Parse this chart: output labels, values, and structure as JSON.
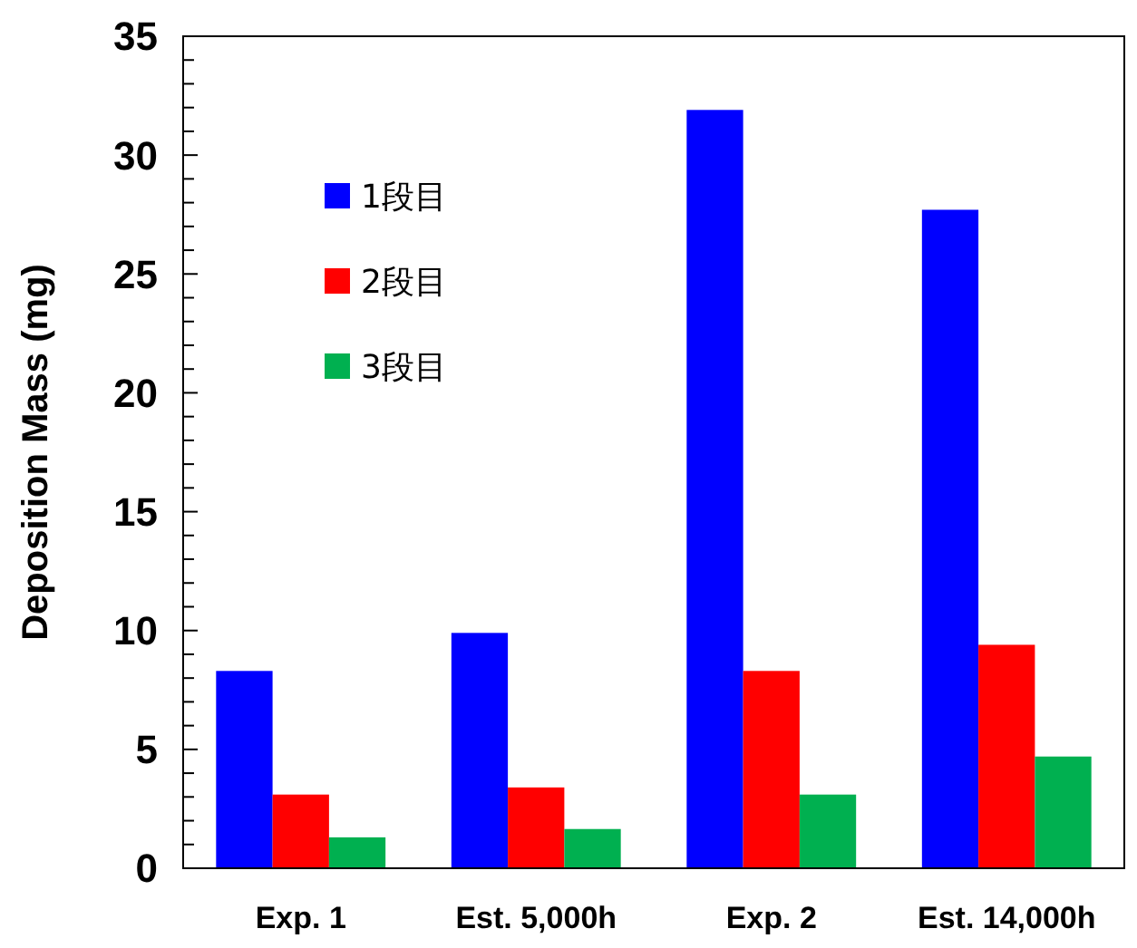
{
  "chart_data": {
    "type": "bar",
    "ylabel": "Deposition Mass (mg)",
    "categories": [
      "Exp. 1",
      "Est. 5,000h",
      "Exp. 2",
      "Est. 14,000h"
    ],
    "series": [
      {
        "name": "1段目",
        "color": "#0000ff",
        "values": [
          8.3,
          9.9,
          31.9,
          27.7
        ]
      },
      {
        "name": "2段目",
        "color": "#ff0000",
        "values": [
          3.1,
          3.4,
          8.3,
          9.4
        ]
      },
      {
        "name": "3段目",
        "color": "#00b050",
        "values": [
          1.3,
          1.65,
          3.1,
          4.7
        ]
      }
    ],
    "ylim": [
      0,
      35
    ],
    "yticks": [
      0,
      {
        "value": 1,
        "label": null
      },
      {
        "value": 2,
        "label": null
      },
      {
        "value": 3,
        "label": null
      },
      {
        "value": 4,
        "label": null
      },
      5,
      {
        "value": 6,
        "label": null
      },
      {
        "value": 7,
        "label": null
      },
      {
        "value": 8,
        "label": null
      },
      {
        "value": 9,
        "label": null
      },
      10,
      {
        "value": 11,
        "label": null
      },
      {
        "value": 12,
        "label": null
      },
      {
        "value": 13,
        "label": null
      },
      {
        "value": 14,
        "label": null
      },
      15,
      {
        "value": 16,
        "label": null
      },
      {
        "value": 17,
        "label": null
      },
      {
        "value": 18,
        "label": null
      },
      {
        "value": 19,
        "label": null
      },
      20,
      {
        "value": 21,
        "label": null
      },
      {
        "value": 22,
        "label": null
      },
      {
        "value": 23,
        "label": null
      },
      {
        "value": 24,
        "label": null
      },
      25,
      {
        "value": 26,
        "label": null
      },
      {
        "value": 27,
        "label": null
      },
      {
        "value": 28,
        "label": null
      },
      {
        "value": 29,
        "label": null
      },
      30,
      {
        "value": 31,
        "label": null
      },
      {
        "value": 32,
        "label": null
      },
      {
        "value": 33,
        "label": null
      },
      {
        "value": 34,
        "label": null
      },
      35
    ],
    "grid": false,
    "legend": "top left"
  }
}
